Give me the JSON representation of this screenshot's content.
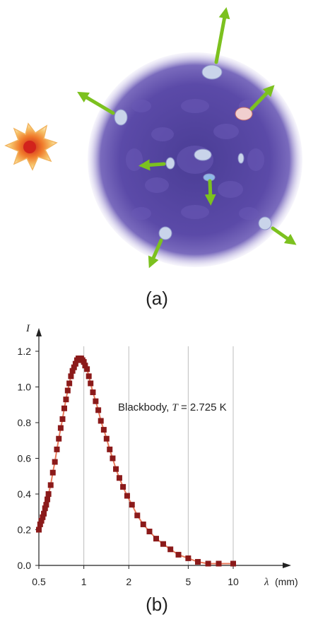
{
  "panels": {
    "a": {
      "label": "(a)"
    },
    "b": {
      "label": "(b)"
    }
  },
  "colors": {
    "universe": "#5b4aa8",
    "arrow": "#7cc11f",
    "marker": "#8b1a1a",
    "curve": "#e8795a",
    "grid": "#bdbdbd"
  },
  "chart_data": {
    "type": "scatter",
    "title": "",
    "xlabel": "",
    "x_symbol": "λ",
    "x_unit": "(mm)",
    "ylabel": "I",
    "x_scale": "log",
    "xlim": [
      0.5,
      12
    ],
    "ylim": [
      0,
      1.3
    ],
    "x_ticks": [
      0.5,
      1,
      2,
      5,
      10
    ],
    "x_tick_labels": [
      "0.5",
      "1",
      "2",
      "5",
      "10"
    ],
    "y_ticks": [
      0.0,
      0.2,
      0.4,
      0.6,
      0.8,
      1.0,
      1.2
    ],
    "y_tick_labels": [
      "0.0",
      "0.2",
      "0.4",
      "0.6",
      "0.8",
      "1.0",
      "1.2"
    ],
    "grid": "vertical",
    "annotation": {
      "prefix": "Blackbody, ",
      "var": "T",
      "suffix": " = 2.725 K"
    },
    "series": [
      {
        "x": [
          0.5,
          0.51,
          0.52,
          0.53,
          0.54,
          0.55,
          0.56,
          0.57,
          0.58,
          0.6,
          0.62,
          0.64,
          0.66,
          0.68,
          0.7,
          0.72,
          0.74,
          0.76,
          0.78,
          0.8,
          0.82,
          0.84,
          0.86,
          0.88,
          0.9,
          0.92,
          0.94,
          0.96,
          0.98,
          1.0,
          1.02,
          1.05,
          1.08,
          1.11,
          1.15,
          1.2,
          1.25,
          1.3,
          1.36,
          1.42,
          1.49,
          1.56,
          1.64,
          1.73,
          1.83,
          1.95,
          2.1,
          2.28,
          2.5,
          2.75,
          3.05,
          3.4,
          3.8,
          4.3,
          5.0,
          5.8,
          6.8,
          8.0,
          10.0
        ],
        "y": [
          0.2,
          0.23,
          0.25,
          0.27,
          0.29,
          0.32,
          0.34,
          0.37,
          0.4,
          0.45,
          0.52,
          0.58,
          0.65,
          0.71,
          0.77,
          0.82,
          0.88,
          0.93,
          0.98,
          1.02,
          1.06,
          1.09,
          1.11,
          1.13,
          1.15,
          1.16,
          1.16,
          1.16,
          1.15,
          1.14,
          1.12,
          1.1,
          1.06,
          1.02,
          0.97,
          0.92,
          0.87,
          0.81,
          0.76,
          0.71,
          0.65,
          0.6,
          0.54,
          0.49,
          0.44,
          0.39,
          0.34,
          0.28,
          0.23,
          0.19,
          0.15,
          0.12,
          0.09,
          0.06,
          0.04,
          0.02,
          0.01,
          0.01,
          0.01
        ]
      }
    ]
  }
}
